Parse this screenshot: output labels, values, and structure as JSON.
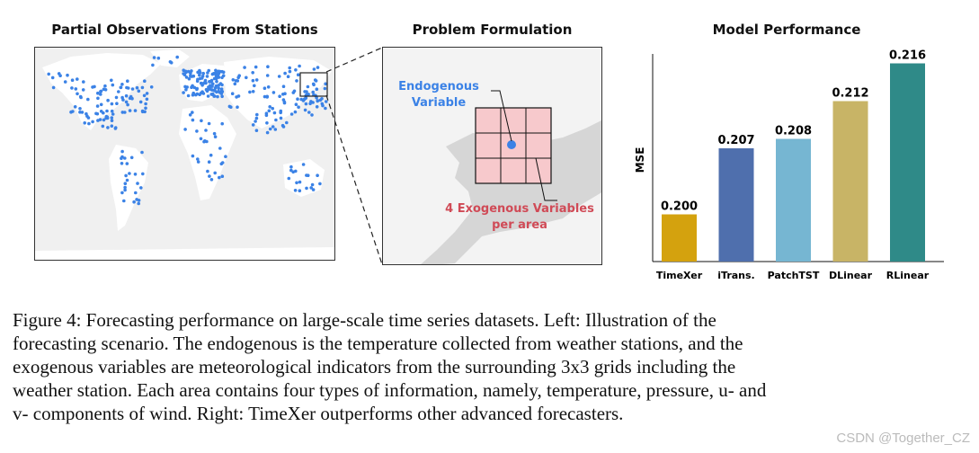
{
  "panels": {
    "left_title": "Partial Observations From Stations",
    "middle_title": "Problem Formulation",
    "right_title": "Model Performance"
  },
  "formulation": {
    "endogenous_line1": "Endogenous",
    "endogenous_line2": "Variable",
    "exogenous_line1": "4 Exogenous Variables",
    "exogenous_line2": "per area"
  },
  "colors": {
    "station_dot": "#3b82e6",
    "grid_fill": "#f7c9cc",
    "exogenous_text": "#d04a56",
    "endogenous_text": "#3b82e6"
  },
  "chart_data": {
    "type": "bar",
    "title": "Model Performance",
    "ylabel": "MSE",
    "xlabel": "",
    "categories": [
      "TimeXer",
      "iTrans.",
      "PatchTST",
      "DLinear",
      "RLinear"
    ],
    "values": [
      0.2,
      0.207,
      0.208,
      0.212,
      0.216
    ],
    "value_labels": [
      "0.200",
      "0.207",
      "0.208",
      "0.212",
      "0.216"
    ],
    "bar_colors": [
      "#d4a20e",
      "#4f6fad",
      "#76b6d2",
      "#c8b466",
      "#2f8a88"
    ],
    "ylim": [
      0.195,
      0.217
    ]
  },
  "caption": {
    "lines": [
      "Figure 4:  Forecasting performance on large-scale time series datasets.  Left:  Illustration of the",
      "forecasting scenario. The endogenous is the temperature collected from weather stations, and the",
      "exogenous variables are meteorological indicators from the surrounding 3x3 grids including the",
      "weather station. Each area contains four types of information, namely, temperature, pressure, u- and",
      "v- components of wind. Right: TimeXer outperforms other advanced forecasters."
    ]
  },
  "watermark": "CSDN @Together_CZ"
}
